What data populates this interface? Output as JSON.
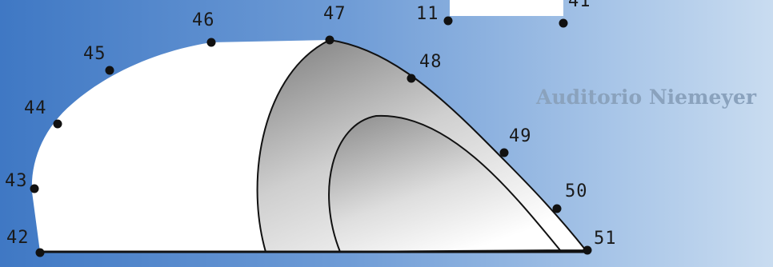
{
  "title": "Auditorio Niemeyer",
  "points": [
    {
      "id": "11",
      "label": "11"
    },
    {
      "id": "41",
      "label": "41"
    },
    {
      "id": "42",
      "label": "42"
    },
    {
      "id": "43",
      "label": "43"
    },
    {
      "id": "44",
      "label": "44"
    },
    {
      "id": "45",
      "label": "45"
    },
    {
      "id": "46",
      "label": "46"
    },
    {
      "id": "47",
      "label": "47"
    },
    {
      "id": "48",
      "label": "48"
    },
    {
      "id": "49",
      "label": "49"
    },
    {
      "id": "50",
      "label": "50"
    },
    {
      "id": "51",
      "label": "51"
    }
  ]
}
